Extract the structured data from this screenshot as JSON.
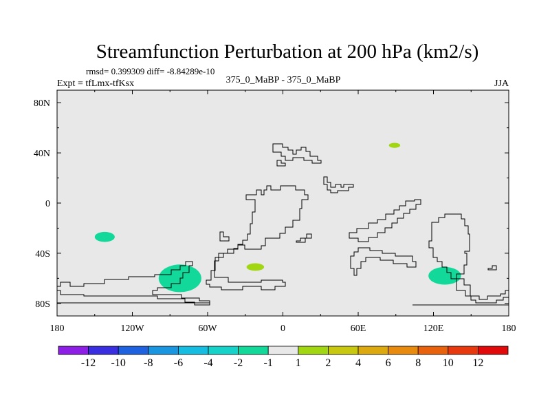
{
  "chart_data": {
    "type": "heatmap",
    "title": "Streamfunction Perturbation at 200 hPa (km2/s)",
    "stats": "rmsd= 0.399309 diff= -8.84289e-10",
    "experiment": "Expt = tfLmx-tfKsx",
    "subtitle": "375_0_MaBP - 375_0_MaBP",
    "season": "JJA",
    "x_range": [
      -180,
      180
    ],
    "y_range": [
      -90,
      90
    ],
    "x_ticks": [
      {
        "value": -180,
        "label": "180"
      },
      {
        "value": -120,
        "label": "120W"
      },
      {
        "value": -60,
        "label": "60W"
      },
      {
        "value": 0,
        "label": "0"
      },
      {
        "value": 60,
        "label": "60E"
      },
      {
        "value": 120,
        "label": "120E"
      },
      {
        "value": 180,
        "label": "180"
      }
    ],
    "y_ticks": [
      {
        "value": 80,
        "label": "80N"
      },
      {
        "value": 40,
        "label": "40N"
      },
      {
        "value": 0,
        "label": "0"
      },
      {
        "value": -40,
        "label": "40S"
      },
      {
        "value": -80,
        "label": "80S"
      }
    ],
    "background_color": "#e8e8e8",
    "colorbar": {
      "colors": [
        "#8c1ee6",
        "#3a2fe0",
        "#1f62e0",
        "#1a95e0",
        "#17bde0",
        "#16d2c8",
        "#12d89a",
        "#e8e8e8",
        "#a0d612",
        "#c8c810",
        "#dcaa10",
        "#e88a0e",
        "#e8620e",
        "#e8380e",
        "#e00a0a"
      ],
      "labels": [
        "-12",
        "-10",
        "-8",
        "-6",
        "-4",
        "-2",
        "-1",
        "1",
        "2",
        "4",
        "6",
        "8",
        "10",
        "12"
      ]
    },
    "anomalies": [
      {
        "lon": -142,
        "lat": -27,
        "rlon": 8,
        "rlat": 4,
        "level": "-2 to -1",
        "color": "#12d89a"
      },
      {
        "lon": -82,
        "lat": -60,
        "rlon": 17,
        "rlat": 11,
        "level": "-2 to -1",
        "color": "#12d89a"
      },
      {
        "lon": -22,
        "lat": -51,
        "rlon": 7,
        "rlat": 3,
        "level": "1 to 2",
        "color": "#a0d612"
      },
      {
        "lon": 89,
        "lat": 46,
        "rlon": 4.5,
        "rlat": 2,
        "level": "1 to 2",
        "color": "#a0d612"
      },
      {
        "lon": 129,
        "lat": -58,
        "rlon": 13,
        "rlat": 7,
        "level": "-2 to -1",
        "color": "#12d89a"
      }
    ]
  }
}
